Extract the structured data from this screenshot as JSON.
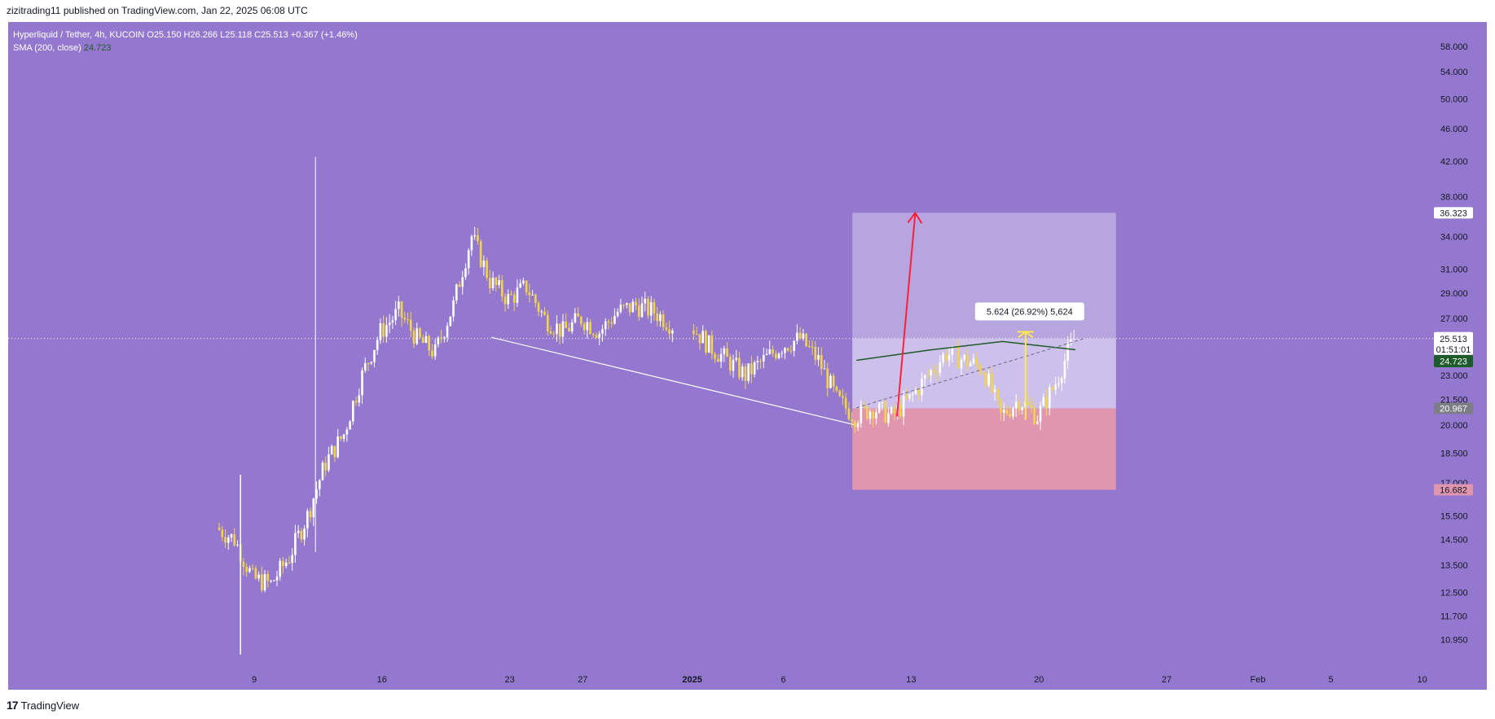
{
  "header": {
    "publisher": "zizitrading11 published on TradingView.com, Jan 22, 2025 06:08 UTC"
  },
  "legend": {
    "symbol_line": "Hyperliquid / Tether, 4h, KUCOIN  O25.150  H26.266  L25.118  C25.513  +0.367 (+1.46%)",
    "sma_label": "SMA (200, close)",
    "sma_value": "24.723"
  },
  "footer": {
    "logo": "17",
    "brand": "TradingView"
  },
  "colors": {
    "background": "#9478cf",
    "candle_up": "#ffffff",
    "candle_down": "#f2d547",
    "sma": "#1e5b2a",
    "target_zone": "#b7a5e0",
    "entry_zone": "#cdc0ea",
    "stop_zone": "#e096ae",
    "arrow_red": "#ff1f3a",
    "arrow_yellow": "#ffe84d",
    "trendline": "#ffffff"
  },
  "chart_data": {
    "type": "candlestick",
    "symbol": "Hyperliquid / Tether",
    "timeframe": "4h",
    "exchange": "KUCOIN",
    "x_ticks": [
      "9",
      "16",
      "23",
      "27",
      "2025",
      "6",
      "13",
      "20",
      "27",
      "Feb",
      "5",
      "10"
    ],
    "y_ticks": [
      "58.000",
      "54.000",
      "50.000",
      "46.000",
      "42.000",
      "38.000",
      "34.000",
      "31.000",
      "29.000",
      "27.000",
      "23.000",
      "21.500",
      "20.000",
      "18.500",
      "17.000",
      "15.500",
      "14.500",
      "13.500",
      "12.500",
      "11.700",
      "10.950"
    ],
    "y_scale": "log",
    "ylim": [
      10.4,
      60.0
    ],
    "grid": false,
    "ohlc_last": {
      "open": 25.15,
      "high": 26.266,
      "low": 25.118,
      "close": 25.513,
      "change": "+0.367 (+1.46%)"
    },
    "price_path": [
      [
        "Dec 7",
        15.0
      ],
      [
        "Dec 8",
        14.5
      ],
      [
        "Dec 9",
        13.0
      ],
      [
        "Dec 10",
        12.8
      ],
      [
        "Dec 11",
        13.8
      ],
      [
        "Dec 12",
        15.5
      ],
      [
        "Dec 13",
        18.0
      ],
      [
        "Dec 14",
        19.5
      ],
      [
        "Dec 15",
        23.0
      ],
      [
        "Dec 16",
        26.0
      ],
      [
        "Dec 17",
        27.5
      ],
      [
        "Dec 18",
        25.5
      ],
      [
        "Dec 19",
        24.5
      ],
      [
        "Dec 20",
        28.0
      ],
      [
        "Dec 21",
        34.0
      ],
      [
        "Dec 22",
        30.0
      ],
      [
        "Dec 23",
        28.5
      ],
      [
        "Dec 24",
        29.5
      ],
      [
        "Dec 25",
        27.0
      ],
      [
        "Dec 26",
        26.0
      ],
      [
        "Dec 27",
        27.0
      ],
      [
        "Dec 28",
        26.0
      ],
      [
        "Dec 29",
        27.5
      ],
      [
        "Dec 30",
        28.0
      ],
      [
        "Dec 31",
        27.5
      ],
      [
        "Jan 1",
        26.5
      ],
      [
        "Jan 2",
        25.0
      ],
      [
        "Jan 3",
        24.0
      ],
      [
        "Jan 4",
        23.0
      ],
      [
        "Jan 5",
        24.0
      ],
      [
        "Jan 6",
        25.0
      ],
      [
        "Jan 7",
        25.5
      ],
      [
        "Jan 8",
        24.0
      ],
      [
        "Jan 9",
        21.5
      ],
      [
        "Jan 10",
        20.5
      ],
      [
        "Jan 11",
        21.0
      ],
      [
        "Jan 12",
        20.5
      ],
      [
        "Jan 13",
        21.5
      ],
      [
        "Jan 14",
        23.0
      ],
      [
        "Jan 15",
        24.5
      ],
      [
        "Jan 16",
        24.0
      ],
      [
        "Jan 17",
        23.5
      ],
      [
        "Jan 18",
        20.5
      ],
      [
        "Jan 19",
        21.5
      ],
      [
        "Jan 20",
        20.5
      ],
      [
        "Jan 21",
        22.5
      ],
      [
        "Jan 22",
        25.5
      ]
    ],
    "sma": {
      "label": "SMA (200, close)",
      "value": 24.723,
      "points": [
        [
          "Jan 10",
          24.0
        ],
        [
          "Jan 14",
          24.7
        ],
        [
          "Jan 18",
          25.3
        ],
        [
          "Jan 22",
          24.723
        ]
      ]
    },
    "price_labels": {
      "target": "36.323",
      "current": "25.513",
      "countdown": "01:51:01",
      "sma": "24.723",
      "entry": "20.967",
      "stop": "16.682"
    },
    "position_tool": {
      "start": "Jan 10",
      "end": "Jan 24",
      "target": 36.323,
      "entry": 20.967,
      "stop": 16.682,
      "current": 25.513
    },
    "measure_label": "5.624 (26.92%) 5,624",
    "trendline": {
      "from": [
        "Dec 22",
        25.6
      ],
      "to": [
        "Jan 10",
        20.0
      ]
    },
    "spike": {
      "date": "Dec 12",
      "high": 42.5
    }
  }
}
